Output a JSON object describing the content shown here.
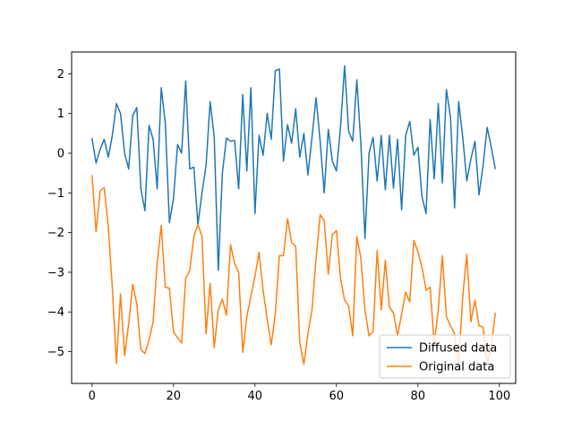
{
  "chart_data": {
    "type": "line",
    "title": "",
    "xlabel": "",
    "ylabel": "",
    "xlim": [
      -5,
      104
    ],
    "ylim": [
      -5.8,
      2.55
    ],
    "xticks": [
      0,
      20,
      40,
      60,
      80,
      100
    ],
    "yticks": [
      -5,
      -4,
      -3,
      -2,
      -1,
      0,
      1,
      2
    ],
    "grid": false,
    "legend_position": "lower-right",
    "series": [
      {
        "name": "Diffused data",
        "color": "#1f77b4",
        "x": [
          0,
          1,
          2,
          3,
          4,
          5,
          6,
          7,
          8,
          9,
          10,
          11,
          12,
          13,
          14,
          15,
          16,
          17,
          18,
          19,
          20,
          21,
          22,
          23,
          24,
          25,
          26,
          27,
          28,
          29,
          30,
          31,
          32,
          33,
          34,
          35,
          36,
          37,
          38,
          39,
          40,
          41,
          42,
          43,
          44,
          45,
          46,
          47,
          48,
          49,
          50,
          51,
          52,
          53,
          54,
          55,
          56,
          57,
          58,
          59,
          60,
          61,
          62,
          63,
          64,
          65,
          66,
          67,
          68,
          69,
          70,
          71,
          72,
          73,
          74,
          75,
          76,
          77,
          78,
          79,
          80,
          81,
          82,
          83,
          84,
          85,
          86,
          87,
          88,
          89,
          90,
          91,
          92,
          93,
          94,
          95,
          96,
          97,
          98,
          99
        ],
        "values": [
          0.38,
          -0.25,
          0.1,
          0.35,
          -0.1,
          0.45,
          1.25,
          1.0,
          0.0,
          -0.4,
          0.95,
          1.15,
          -0.9,
          -1.45,
          0.7,
          0.35,
          -0.9,
          1.65,
          0.75,
          -1.75,
          -1.15,
          0.22,
          0.0,
          1.82,
          -0.4,
          -0.35,
          -1.8,
          -1.0,
          -0.3,
          1.3,
          0.4,
          -2.95,
          -0.5,
          0.38,
          0.3,
          0.32,
          -0.9,
          1.48,
          -0.45,
          1.65,
          -1.52,
          0.45,
          -0.05,
          1.0,
          0.35,
          2.08,
          2.12,
          -0.2,
          0.72,
          0.25,
          1.12,
          -0.1,
          0.5,
          -0.55,
          0.4,
          1.4,
          0.3,
          -1.0,
          0.6,
          -0.2,
          -0.45,
          0.65,
          2.2,
          0.55,
          0.3,
          1.85,
          0.25,
          -2.15,
          0.0,
          0.4,
          -0.7,
          0.45,
          -0.92,
          0.45,
          -0.88,
          0.35,
          -1.43,
          0.45,
          0.8,
          -0.05,
          0.15,
          -1.1,
          -1.52,
          0.85,
          -0.65,
          1.25,
          -0.75,
          1.6,
          0.9,
          -1.38,
          1.3,
          0.4,
          -0.7,
          -0.15,
          0.3,
          -1.05,
          -0.3,
          0.65,
          0.15,
          -0.4
        ]
      },
      {
        "name": "Original data",
        "color": "#ff7f0e",
        "x": [
          0,
          1,
          2,
          3,
          4,
          5,
          6,
          7,
          8,
          9,
          10,
          11,
          12,
          13,
          14,
          15,
          16,
          17,
          18,
          19,
          20,
          21,
          22,
          23,
          24,
          25,
          26,
          27,
          28,
          29,
          30,
          31,
          32,
          33,
          34,
          35,
          36,
          37,
          38,
          39,
          40,
          41,
          42,
          43,
          44,
          45,
          46,
          47,
          48,
          49,
          50,
          51,
          52,
          53,
          54,
          55,
          56,
          57,
          58,
          59,
          60,
          61,
          62,
          63,
          64,
          65,
          66,
          67,
          68,
          69,
          70,
          71,
          72,
          73,
          74,
          75,
          76,
          77,
          78,
          79,
          80,
          81,
          82,
          83,
          84,
          85,
          86,
          87,
          88,
          89,
          90,
          91,
          92,
          93,
          94,
          95,
          96,
          97,
          98,
          99
        ],
        "values": [
          -0.55,
          -1.98,
          -0.95,
          -0.87,
          -1.85,
          -3.4,
          -5.3,
          -3.55,
          -5.1,
          -4.3,
          -3.3,
          -3.8,
          -4.95,
          -5.05,
          -4.7,
          -4.25,
          -2.75,
          -1.82,
          -3.38,
          -3.4,
          -4.5,
          -4.65,
          -4.78,
          -3.15,
          -2.95,
          -2.1,
          -1.8,
          -2.1,
          -4.55,
          -3.28,
          -4.9,
          -3.95,
          -3.68,
          -4.08,
          -2.3,
          -2.78,
          -3.0,
          -5.02,
          -4.12,
          -3.6,
          -3.1,
          -2.5,
          -3.45,
          -4.18,
          -4.83,
          -4.05,
          -2.58,
          -2.58,
          -1.65,
          -2.25,
          -2.35,
          -4.78,
          -5.32,
          -4.55,
          -3.95,
          -2.65,
          -1.55,
          -1.7,
          -3.05,
          -2.05,
          -1.95,
          -3.15,
          -3.7,
          -3.85,
          -4.6,
          -2.1,
          -2.65,
          -3.95,
          -4.6,
          -4.5,
          -2.45,
          -3.95,
          -2.7,
          -3.88,
          -4.02,
          -4.6,
          -4.05,
          -3.5,
          -3.75,
          -2.2,
          -2.48,
          -2.88,
          -3.45,
          -3.38,
          -4.8,
          -3.95,
          -2.58,
          -4.12,
          -4.35,
          -4.55,
          -5.3,
          -3.6,
          -2.55,
          -4.25,
          -3.7,
          -4.35,
          -4.38,
          -5.3,
          -4.88,
          -4.02
        ]
      }
    ]
  }
}
